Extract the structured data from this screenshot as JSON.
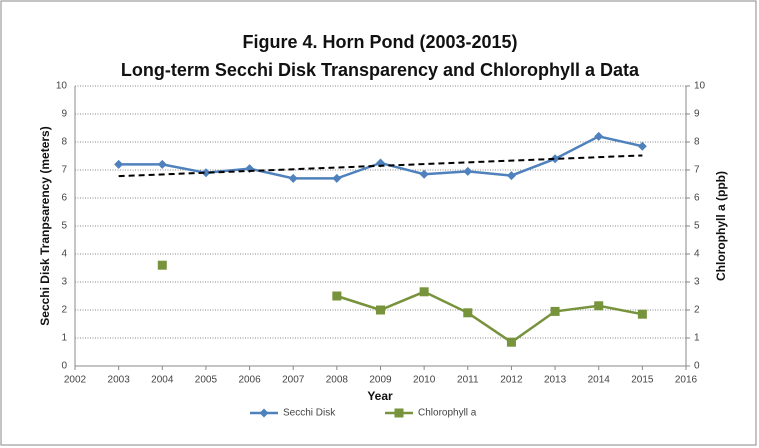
{
  "chart_data": {
    "type": "line",
    "title": [
      "Figure 4. Horn Pond (2003-2015)",
      "Long-term Secchi Disk Transparency and Chlorophyll a Data"
    ],
    "xlabel": "Year",
    "ylabel": "Secchi Disk Tranpsarency (meters)",
    "y2label": "Chlorophyll a (ppb)",
    "x": [
      2003,
      2004,
      2005,
      2006,
      2007,
      2008,
      2009,
      2010,
      2011,
      2012,
      2013,
      2014,
      2015
    ],
    "series": [
      {
        "name": "Secchi Disk",
        "color": "#4f81bd",
        "marker": "diamond",
        "axis": "y",
        "values": [
          7.2,
          7.2,
          6.9,
          7.05,
          6.7,
          6.7,
          7.25,
          6.85,
          6.95,
          6.8,
          7.4,
          8.2,
          7.85
        ]
      },
      {
        "name": "Chlorophyll a",
        "color": "#77933c",
        "marker": "square",
        "axis": "y2",
        "values": [
          null,
          3.6,
          null,
          null,
          null,
          2.5,
          2.0,
          2.65,
          1.9,
          0.85,
          1.95,
          2.15,
          1.85
        ]
      }
    ],
    "trendline": {
      "x": [
        2003,
        2015
      ],
      "values": [
        6.78,
        7.52
      ],
      "color": "#000000"
    },
    "xlim": [
      2002,
      2016
    ],
    "xticks": [
      2002,
      2003,
      2004,
      2005,
      2006,
      2007,
      2008,
      2009,
      2010,
      2011,
      2012,
      2013,
      2014,
      2015,
      2016
    ],
    "ylim": [
      0,
      10
    ],
    "yticks": [
      0,
      1,
      2,
      3,
      4,
      5,
      6,
      7,
      8,
      9,
      10
    ],
    "y2lim": [
      0,
      10
    ],
    "y2ticks": [
      0,
      1,
      2,
      3,
      4,
      5,
      6,
      7,
      8,
      9,
      10
    ],
    "grid": true,
    "legend": "bottom"
  }
}
